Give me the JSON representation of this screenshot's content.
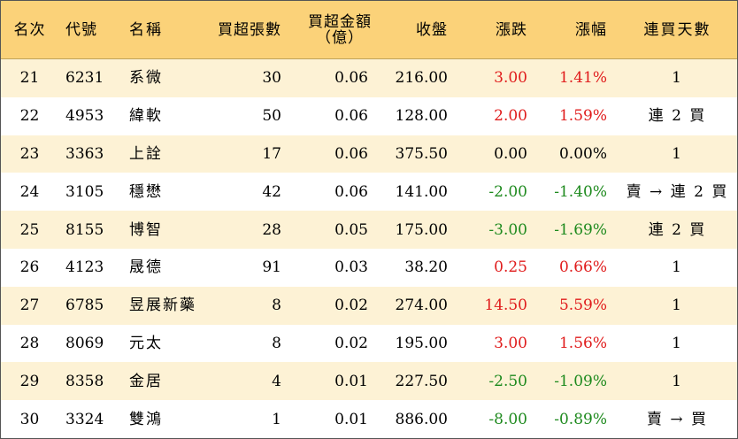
{
  "headers": {
    "rank": "名次",
    "code": "代號",
    "name": "名稱",
    "volume": "買超張數",
    "amount_line1": "買超金額",
    "amount_line2": "（億）",
    "close": "收盤",
    "change": "漲跌",
    "percent": "漲幅",
    "days": "連買天數"
  },
  "colors": {
    "header_bg": "#fbd279",
    "stripe_bg": "#fdf2d5",
    "up": "#e01c1c",
    "down": "#1e8a1e"
  },
  "rows": [
    {
      "rank": "21",
      "code": "6231",
      "name": "系微",
      "volume": "30",
      "amount": "0.06",
      "close": "216.00",
      "change": "3.00",
      "percent": "1.41%",
      "days": "1",
      "dir": "up"
    },
    {
      "rank": "22",
      "code": "4953",
      "name": "緯軟",
      "volume": "50",
      "amount": "0.06",
      "close": "128.00",
      "change": "2.00",
      "percent": "1.59%",
      "days": "連 2 買",
      "dir": "up"
    },
    {
      "rank": "23",
      "code": "3363",
      "name": "上詮",
      "volume": "17",
      "amount": "0.06",
      "close": "375.50",
      "change": "0.00",
      "percent": "0.00%",
      "days": "1",
      "dir": "flat"
    },
    {
      "rank": "24",
      "code": "3105",
      "name": "穩懋",
      "volume": "42",
      "amount": "0.06",
      "close": "141.00",
      "change": "-2.00",
      "percent": "-1.40%",
      "days": "賣 → 連 2 買",
      "dir": "down"
    },
    {
      "rank": "25",
      "code": "8155",
      "name": "博智",
      "volume": "28",
      "amount": "0.05",
      "close": "175.00",
      "change": "-3.00",
      "percent": "-1.69%",
      "days": "連 2 買",
      "dir": "down"
    },
    {
      "rank": "26",
      "code": "4123",
      "name": "晟德",
      "volume": "91",
      "amount": "0.03",
      "close": "38.20",
      "change": "0.25",
      "percent": "0.66%",
      "days": "1",
      "dir": "up"
    },
    {
      "rank": "27",
      "code": "6785",
      "name": "昱展新藥",
      "volume": "8",
      "amount": "0.02",
      "close": "274.00",
      "change": "14.50",
      "percent": "5.59%",
      "days": "1",
      "dir": "up"
    },
    {
      "rank": "28",
      "code": "8069",
      "name": "元太",
      "volume": "8",
      "amount": "0.02",
      "close": "195.00",
      "change": "3.00",
      "percent": "1.56%",
      "days": "1",
      "dir": "up"
    },
    {
      "rank": "29",
      "code": "8358",
      "name": "金居",
      "volume": "4",
      "amount": "0.01",
      "close": "227.50",
      "change": "-2.50",
      "percent": "-1.09%",
      "days": "1",
      "dir": "down"
    },
    {
      "rank": "30",
      "code": "3324",
      "name": "雙鴻",
      "volume": "1",
      "amount": "0.01",
      "close": "886.00",
      "change": "-8.00",
      "percent": "-0.89%",
      "days": "賣 → 買",
      "dir": "down"
    }
  ]
}
